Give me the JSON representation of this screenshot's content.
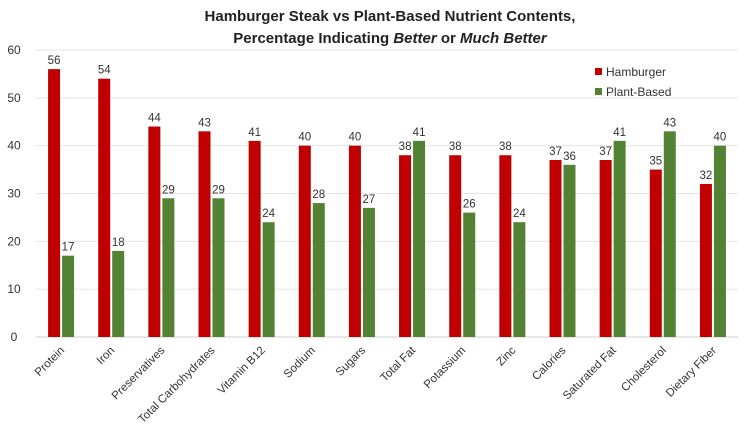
{
  "chart_data": {
    "type": "bar",
    "title_line1": "Hamburger Steak vs Plant-Based Nutrient Contents,",
    "title_line2_prefix": "Percentage Indicating ",
    "title_line2_em1": "Better",
    "title_line2_mid": " or ",
    "title_line2_em2": "Much Better",
    "categories": [
      "Protein",
      "Iron",
      "Preservatives",
      "Total Carbohydrates",
      "Vitamin B12",
      "Sodium",
      "Sugars",
      "Total Fat",
      "Potassium",
      "Zinc",
      "Calories",
      "Saturated Fat",
      "Cholesterol",
      "Dietary Fiber"
    ],
    "series": [
      {
        "name": "Hamburger",
        "color": "#C00000",
        "values": [
          56,
          54,
          44,
          43,
          41,
          40,
          40,
          38,
          38,
          38,
          37,
          37,
          35,
          32
        ]
      },
      {
        "name": "Plant-Based",
        "color": "#548235",
        "values": [
          17,
          18,
          29,
          29,
          24,
          28,
          27,
          41,
          26,
          24,
          36,
          41,
          43,
          40
        ]
      }
    ],
    "ylim": [
      0,
      60
    ],
    "yticks": [
      0,
      10,
      20,
      30,
      40,
      50,
      60
    ],
    "grid": true,
    "legend": "top-right",
    "xlabel": "",
    "ylabel": ""
  }
}
